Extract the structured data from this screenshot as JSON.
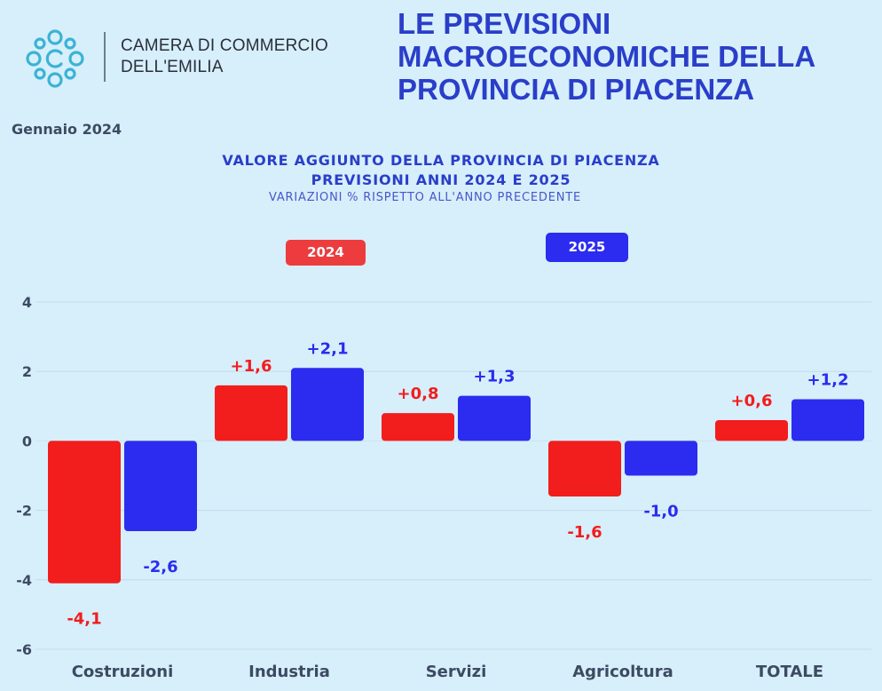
{
  "header": {
    "org_line1": "CAMERA DI COMMERCIO",
    "org_line2": "DELL'EMILIA",
    "headline": [
      "LE PREVISIONI",
      "MACROECONOMICHE DELLA",
      "PROVINCIA DI PIACENZA"
    ],
    "date": "Gennaio  2024"
  },
  "colors": {
    "2024": "#f21d1d",
    "2025": "#2b2cf0",
    "headline": "#2a3ec9",
    "logo": "#3bb3d4"
  },
  "chart_data": {
    "type": "bar",
    "title": "VALORE AGGIUNTO DELLA PROVINCIA DI PIACENZA",
    "title_line2": "PREVISIONI ANNI 2024 E 2025",
    "subtitle": "VARIAZIONI % RISPETTO ALL'ANNO PRECEDENTE",
    "categories": [
      "Costruzioni",
      "Industria",
      "Servizi",
      "Agricoltura",
      "TOTALE"
    ],
    "series": [
      {
        "name": "2024",
        "values": [
          -4.1,
          1.6,
          0.8,
          -1.6,
          0.6
        ],
        "labels": [
          "-4,1",
          "+1,6",
          "+0,8",
          "-1,6",
          "+0,6"
        ]
      },
      {
        "name": "2025",
        "values": [
          -2.6,
          2.1,
          1.3,
          -1.0,
          1.2
        ],
        "labels": [
          "-2,6",
          "+2,1",
          "+1,3",
          "-1,0",
          "+1,2"
        ]
      }
    ],
    "ylim": [
      -6,
      4
    ],
    "yticks": [
      4,
      2,
      0,
      -2,
      -4,
      -6
    ],
    "grid": true,
    "legend_position": "top"
  }
}
